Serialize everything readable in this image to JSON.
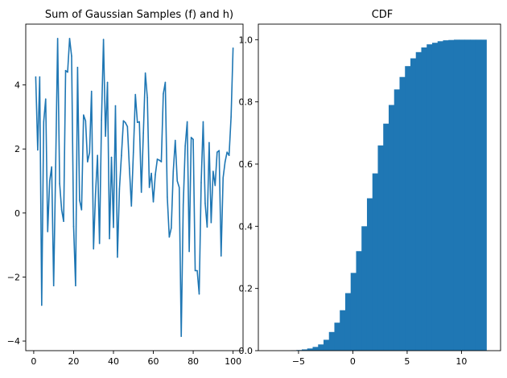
{
  "chart_data": [
    {
      "type": "line",
      "title": "Sum of Gaussian Samples (f) and h)",
      "xlabel": "",
      "ylabel": "",
      "xlim": [
        -4,
        105
      ],
      "ylim": [
        -4.3,
        5.9
      ],
      "xticks": [
        0,
        20,
        40,
        60,
        80,
        100
      ],
      "yticks": [
        -4,
        -2,
        0,
        2,
        4
      ],
      "grid": false,
      "color": "#1f77b4",
      "x": [
        1,
        2,
        3,
        4,
        5,
        6,
        7,
        8,
        9,
        10,
        11,
        12,
        13,
        14,
        15,
        16,
        17,
        18,
        19,
        20,
        21,
        22,
        23,
        24,
        25,
        26,
        27,
        28,
        29,
        30,
        31,
        32,
        33,
        34,
        35,
        36,
        37,
        38,
        39,
        40,
        41,
        42,
        43,
        44,
        45,
        46,
        47,
        48,
        49,
        50,
        51,
        52,
        53,
        54,
        55,
        56,
        57,
        58,
        59,
        60,
        61,
        62,
        63,
        64,
        65,
        66,
        67,
        68,
        69,
        70,
        71,
        72,
        73,
        74,
        75,
        76,
        77,
        78,
        79,
        80,
        81,
        82,
        83,
        84,
        85,
        86,
        87,
        88,
        89,
        90,
        91,
        92,
        93,
        94,
        95,
        96,
        97,
        98,
        99,
        100
      ],
      "y": [
        4.25,
        1.97,
        4.25,
        -2.88,
        2.85,
        3.56,
        -0.58,
        1.0,
        1.44,
        -2.27,
        1.44,
        5.45,
        0.92,
        0.1,
        -0.26,
        4.45,
        4.4,
        5.45,
        4.9,
        -0.42,
        -2.27,
        4.55,
        0.4,
        0.1,
        3.06,
        2.88,
        1.6,
        1.88,
        3.8,
        -1.12,
        0.6,
        1.8,
        -0.95,
        2.9,
        5.42,
        2.4,
        4.08,
        -0.8,
        1.74,
        -0.45,
        3.35,
        -1.38,
        0.75,
        1.8,
        2.88,
        2.82,
        2.7,
        1.4,
        0.22,
        1.9,
        3.7,
        2.83,
        2.85,
        0.65,
        2.5,
        4.37,
        3.6,
        0.8,
        1.24,
        0.35,
        1.2,
        1.68,
        1.65,
        1.6,
        3.72,
        4.08,
        0.5,
        -0.75,
        -0.47,
        1.3,
        2.27,
        1.0,
        0.8,
        -3.85,
        0.25,
        2.1,
        2.85,
        -1.2,
        2.36,
        2.3,
        -1.8,
        -1.8,
        -2.53,
        0.95,
        2.85,
        0.3,
        -0.44,
        2.2,
        -0.3,
        1.3,
        0.86,
        1.9,
        1.95,
        -1.34,
        1.1,
        1.6,
        1.9,
        1.8,
        3.0,
        5.15
      ]
    },
    {
      "type": "bar",
      "title": "CDF",
      "xlabel": "",
      "ylabel": "",
      "xlim": [
        -8.7,
        13.6
      ],
      "ylim": [
        0,
        1.05
      ],
      "xticks": [
        -5,
        0,
        5,
        10
      ],
      "yticks": [
        0.0,
        0.2,
        0.4,
        0.6,
        0.8,
        1.0
      ],
      "grid": false,
      "color": "#1f77b4",
      "bin_edges": [
        -7.7,
        -7.2,
        -6.7,
        -6.2,
        -5.7,
        -5.2,
        -4.7,
        -4.2,
        -3.7,
        -3.2,
        -2.7,
        -2.2,
        -1.7,
        -1.2,
        -0.7,
        -0.2,
        0.3,
        0.8,
        1.3,
        1.8,
        2.3,
        2.8,
        3.3,
        3.8,
        4.3,
        4.8,
        5.3,
        5.8,
        6.3,
        6.8,
        7.3,
        7.8,
        8.3,
        8.8,
        9.3,
        9.8,
        10.3,
        10.8,
        11.3,
        11.8,
        12.3
      ],
      "values": [
        0.0,
        0.0,
        0.0,
        0.0,
        0.001,
        0.002,
        0.004,
        0.007,
        0.012,
        0.02,
        0.035,
        0.06,
        0.09,
        0.13,
        0.185,
        0.25,
        0.32,
        0.4,
        0.49,
        0.57,
        0.66,
        0.73,
        0.79,
        0.84,
        0.88,
        0.915,
        0.94,
        0.96,
        0.975,
        0.985,
        0.99,
        0.995,
        0.998,
        0.999,
        1.0,
        1.0,
        1.0,
        1.0,
        1.0,
        1.0
      ]
    }
  ]
}
